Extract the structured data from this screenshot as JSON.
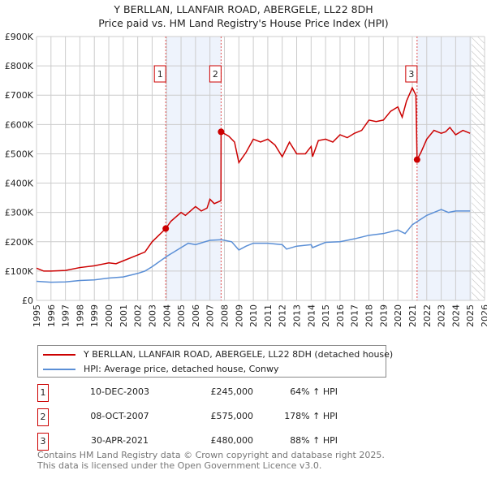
{
  "chart_data": {
    "type": "line",
    "title": "Y BERLLAN, LLANFAIR ROAD, ABERGELE, LL22 8DH",
    "subtitle": "Price paid vs. HM Land Registry's House Price Index (HPI)",
    "xlim": [
      1995,
      2026
    ],
    "ylim": [
      0,
      900000
    ],
    "x_ticks": [
      "1995",
      "1996",
      "1997",
      "1998",
      "1999",
      "2000",
      "2001",
      "2002",
      "2003",
      "2004",
      "2005",
      "2006",
      "2007",
      "2008",
      "2009",
      "2010",
      "2011",
      "2012",
      "2013",
      "2014",
      "2015",
      "2016",
      "2017",
      "2018",
      "2019",
      "2020",
      "2021",
      "2022",
      "2023",
      "2024",
      "2025",
      "2026"
    ],
    "y_ticks": [
      {
        "v": 0,
        "label": "£0"
      },
      {
        "v": 100000,
        "label": "£100K"
      },
      {
        "v": 200000,
        "label": "£200K"
      },
      {
        "v": 300000,
        "label": "£300K"
      },
      {
        "v": 400000,
        "label": "£400K"
      },
      {
        "v": 500000,
        "label": "£500K"
      },
      {
        "v": 600000,
        "label": "£600K"
      },
      {
        "v": 700000,
        "label": "£700K"
      },
      {
        "v": 800000,
        "label": "£800K"
      },
      {
        "v": 900000,
        "label": "£900K"
      }
    ],
    "grid": true,
    "shaded_ranges": [
      [
        2003.94,
        2007.77
      ],
      [
        2021.33,
        2025.1
      ]
    ],
    "forecast_from": 2025.1,
    "series": [
      {
        "name": "Y BERLLAN, LLANFAIR ROAD, ABERGELE, LL22 8DH (detached house)",
        "color": "#cc0000",
        "x": [
          1995,
          1995.5,
          1996,
          1997,
          1998,
          1999,
          2000,
          2000.5,
          2001,
          2002,
          2002.5,
          2003,
          2003.94,
          2004.3,
          2005,
          2005.3,
          2006,
          2006.4,
          2006.8,
          2007,
          2007.3,
          2007.76,
          2007.77,
          2008.3,
          2008.7,
          2009,
          2009.5,
          2010,
          2010.5,
          2011,
          2011.5,
          2012,
          2012.5,
          2013,
          2013.6,
          2014,
          2014.1,
          2014.5,
          2015,
          2015.5,
          2016,
          2016.5,
          2017,
          2017.5,
          2018,
          2018.5,
          2019,
          2019.5,
          2020,
          2020.3,
          2020.6,
          2021,
          2021.25,
          2021.33,
          2021.6,
          2022,
          2022.5,
          2023,
          2023.3,
          2023.6,
          2024,
          2024.5,
          2025
        ],
        "y": [
          110000,
          100000,
          100000,
          102000,
          112000,
          118000,
          128000,
          125000,
          135000,
          155000,
          165000,
          200000,
          245000,
          270000,
          300000,
          290000,
          320000,
          305000,
          315000,
          345000,
          330000,
          340000,
          575000,
          560000,
          540000,
          470000,
          505000,
          550000,
          540000,
          550000,
          530000,
          490000,
          540000,
          500000,
          500000,
          525000,
          490000,
          545000,
          550000,
          540000,
          565000,
          555000,
          570000,
          580000,
          615000,
          610000,
          615000,
          645000,
          660000,
          625000,
          680000,
          725000,
          700000,
          480000,
          505000,
          550000,
          580000,
          570000,
          575000,
          590000,
          565000,
          580000,
          570000
        ]
      },
      {
        "name": "HPI: Average price, detached house, Conwy",
        "color": "#5b8fd6",
        "x": [
          1995,
          1996,
          1997,
          1998,
          1999,
          2000,
          2001,
          2002,
          2002.5,
          2003,
          2004,
          2005,
          2005.5,
          2006,
          2007,
          2007.8,
          2008.5,
          2009,
          2009.5,
          2010,
          2011,
          2012,
          2012.3,
          2013,
          2014,
          2014.1,
          2015,
          2016,
          2017,
          2018,
          2019,
          2020,
          2020.5,
          2021,
          2022,
          2023,
          2023.5,
          2024,
          2025
        ],
        "y": [
          65000,
          62000,
          63000,
          68000,
          70000,
          76000,
          80000,
          92000,
          100000,
          115000,
          150000,
          180000,
          195000,
          190000,
          205000,
          207000,
          200000,
          172000,
          185000,
          195000,
          195000,
          190000,
          175000,
          185000,
          190000,
          180000,
          198000,
          200000,
          210000,
          222000,
          228000,
          240000,
          228000,
          258000,
          290000,
          310000,
          300000,
          305000,
          305000
        ]
      }
    ],
    "sales": [
      {
        "label": "1",
        "x": 2003.94,
        "y": 245000,
        "date": "10-DEC-2003",
        "price": "£245,000",
        "hpi": "64% ↑ HPI"
      },
      {
        "label": "2",
        "x": 2007.77,
        "y": 575000,
        "date": "08-OCT-2007",
        "price": "£575,000",
        "hpi": "178% ↑ HPI"
      },
      {
        "label": "3",
        "x": 2021.33,
        "y": 480000,
        "date": "30-APR-2021",
        "price": "£480,000",
        "hpi": "88% ↑ HPI"
      }
    ]
  },
  "footer": {
    "line1": "Contains HM Land Registry data © Crown copyright and database right 2025.",
    "line2": "This data is licensed under the Open Government Licence v3.0."
  }
}
